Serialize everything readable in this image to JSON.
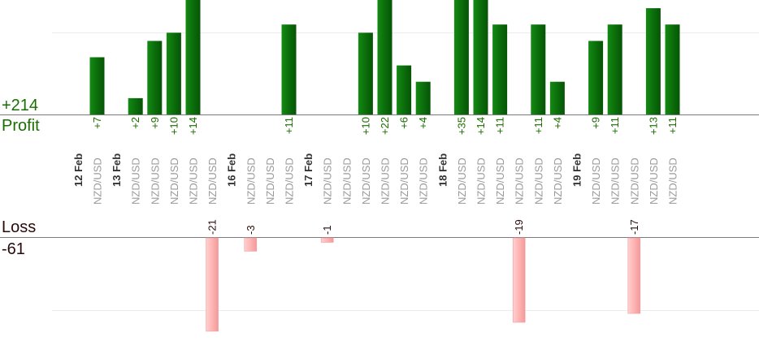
{
  "summary": {
    "profit_total": "+214",
    "profit_label": "Profit",
    "loss_label": "Loss",
    "loss_total": "-61"
  },
  "colors": {
    "profit_bar": "#0b6e0b",
    "profit_text": "#1a6e00",
    "loss_bar": "#ffb3b3",
    "loss_text": "#2a0a0a"
  },
  "chart_data": {
    "type": "bar",
    "title": "",
    "xlabel": "",
    "ylabel": "",
    "grid": true,
    "legend": "none",
    "categories": [
      {
        "date": "12 Feb",
        "pair": "NZD/USD",
        "value": 7,
        "label": "+7"
      },
      {
        "date": "",
        "pair": "",
        "value": null,
        "label": ""
      },
      {
        "date": "13 Feb",
        "pair": "NZD/USD",
        "value": 2,
        "label": "+2"
      },
      {
        "date": "",
        "pair": "NZD/USD",
        "value": 9,
        "label": "+9"
      },
      {
        "date": "",
        "pair": "NZD/USD",
        "value": 10,
        "label": "+10"
      },
      {
        "date": "",
        "pair": "NZD/USD",
        "value": 14,
        "label": "+14"
      },
      {
        "date": "",
        "pair": "NZD/USD",
        "value": -21,
        "label": "-21"
      },
      {
        "date": "",
        "pair": "",
        "value": null,
        "label": ""
      },
      {
        "date": "16 Feb",
        "pair": "NZD/USD",
        "value": -3,
        "label": "-3"
      },
      {
        "date": "",
        "pair": "NZD/USD",
        "value": null,
        "label": ""
      },
      {
        "date": "",
        "pair": "NZD/USD",
        "value": 11,
        "label": "+11"
      },
      {
        "date": "",
        "pair": "",
        "value": null,
        "label": ""
      },
      {
        "date": "17 Feb",
        "pair": "NZD/USD",
        "value": -1,
        "label": "-1"
      },
      {
        "date": "",
        "pair": "NZD/USD",
        "value": null,
        "label": ""
      },
      {
        "date": "",
        "pair": "NZD/USD",
        "value": 10,
        "label": "+10"
      },
      {
        "date": "",
        "pair": "NZD/USD",
        "value": 22,
        "label": "+22"
      },
      {
        "date": "",
        "pair": "NZD/USD",
        "value": 6,
        "label": "+6"
      },
      {
        "date": "",
        "pair": "NZD/USD",
        "value": 4,
        "label": "+4"
      },
      {
        "date": "",
        "pair": "",
        "value": null,
        "label": ""
      },
      {
        "date": "18 Feb",
        "pair": "NZD/USD",
        "value": 35,
        "label": "+35"
      },
      {
        "date": "",
        "pair": "NZD/USD",
        "value": 14,
        "label": "+14"
      },
      {
        "date": "",
        "pair": "NZD/USD",
        "value": 11,
        "label": "+11"
      },
      {
        "date": "",
        "pair": "NZD/USD",
        "value": -19,
        "label": "-19"
      },
      {
        "date": "",
        "pair": "NZD/USD",
        "value": 11,
        "label": "+11"
      },
      {
        "date": "",
        "pair": "NZD/USD",
        "value": 4,
        "label": "+4"
      },
      {
        "date": "",
        "pair": "",
        "value": null,
        "label": ""
      },
      {
        "date": "19 Feb",
        "pair": "NZD/USD",
        "value": 9,
        "label": "+9"
      },
      {
        "date": "",
        "pair": "NZD/USD",
        "value": 11,
        "label": "+11"
      },
      {
        "date": "",
        "pair": "NZD/USD",
        "value": -17,
        "label": "-17"
      },
      {
        "date": "",
        "pair": "NZD/USD",
        "value": 13,
        "label": "+13"
      },
      {
        "date": "",
        "pair": "NZD/USD",
        "value": 11,
        "label": "+11"
      }
    ],
    "profit_scale_max": 14,
    "loss_scale_max": 21
  }
}
